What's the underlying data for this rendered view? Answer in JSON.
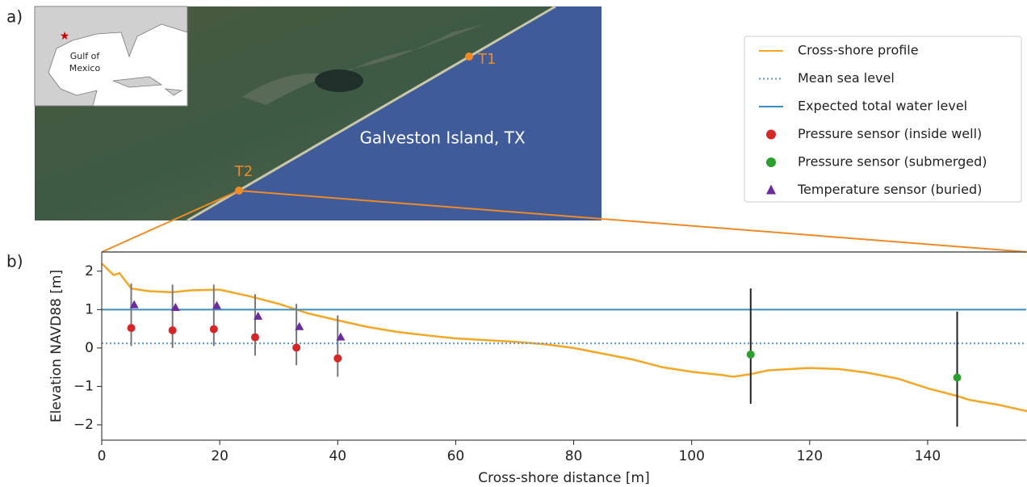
{
  "panel_labels": [
    "a)",
    "b)"
  ],
  "map": {
    "inset_label": [
      "Gulf of",
      "Mexico"
    ],
    "place": "Galveston Island, TX",
    "sites": [
      "T1",
      "T2"
    ]
  },
  "chart_data": {
    "type": "line",
    "xlabel": "Cross-shore distance [m]",
    "ylabel": "Elevation NAVD88 [m]",
    "xlim": [
      0,
      156.7
    ],
    "ylim": [
      -2.4,
      2.5
    ],
    "xticks": [
      0,
      20,
      40,
      60,
      80,
      100,
      120,
      140
    ],
    "yticks": [
      {
        "value": -2,
        "label": "−2"
      },
      {
        "value": -1,
        "label": "−1"
      },
      0,
      1,
      2
    ],
    "legend": "upper right",
    "series": [
      {
        "name": "Cross-shore profile",
        "kind": "line",
        "color": "#f5a623",
        "x": [
          0,
          1,
          2,
          3,
          4,
          5,
          8,
          12,
          15,
          20,
          22,
          25,
          30,
          35,
          40,
          45,
          50,
          55,
          60,
          70,
          75,
          80,
          85,
          90,
          95,
          100,
          105,
          107,
          110,
          113,
          120,
          125,
          130,
          135,
          140,
          145,
          147,
          152,
          157
        ],
        "values": [
          2.2,
          2.05,
          1.9,
          1.95,
          1.75,
          1.55,
          1.48,
          1.45,
          1.5,
          1.52,
          1.45,
          1.35,
          1.15,
          0.9,
          0.72,
          0.55,
          0.42,
          0.33,
          0.25,
          0.16,
          0.1,
          0.0,
          -0.15,
          -0.3,
          -0.5,
          -0.62,
          -0.7,
          -0.75,
          -0.68,
          -0.58,
          -0.52,
          -0.55,
          -0.65,
          -0.8,
          -1.05,
          -1.25,
          -1.35,
          -1.48,
          -1.65
        ]
      },
      {
        "name": "Mean sea level",
        "kind": "hline",
        "style": "dotted",
        "color": "#5b9bd5",
        "value": 0.12
      },
      {
        "name": "Expected total water level",
        "kind": "hline",
        "style": "solid",
        "color": "#3b8ec2",
        "value": 1.0
      },
      {
        "name": "Pressure sensor (inside well)",
        "kind": "scatter",
        "marker": "circle",
        "color": "#d62728",
        "range_color": "#777777",
        "x": [
          5,
          12,
          19,
          26,
          33,
          40
        ],
        "values": [
          0.52,
          0.46,
          0.49,
          0.28,
          0.01,
          -0.27
        ],
        "ranges": [
          [
            0.05,
            1.68
          ],
          [
            0.0,
            1.65
          ],
          [
            0.05,
            1.65
          ],
          [
            -0.2,
            1.4
          ],
          [
            -0.45,
            1.15
          ],
          [
            -0.75,
            0.85
          ]
        ]
      },
      {
        "name": "Pressure sensor (submerged)",
        "kind": "scatter",
        "marker": "circle",
        "color": "#2ca02c",
        "range_color": "#222222",
        "x": [
          110,
          145
        ],
        "values": [
          -0.17,
          -0.77
        ],
        "ranges": [
          [
            -1.45,
            1.55
          ],
          [
            -2.05,
            0.95
          ]
        ]
      },
      {
        "name": "Temperature sensor (buried)",
        "kind": "scatter",
        "marker": "triangle",
        "color": "#6a2c9e",
        "x": [
          5.5,
          12.5,
          19.5,
          26.5,
          33.5,
          40.5
        ],
        "values": [
          1.12,
          1.05,
          1.1,
          0.82,
          0.55,
          0.28
        ]
      }
    ]
  }
}
